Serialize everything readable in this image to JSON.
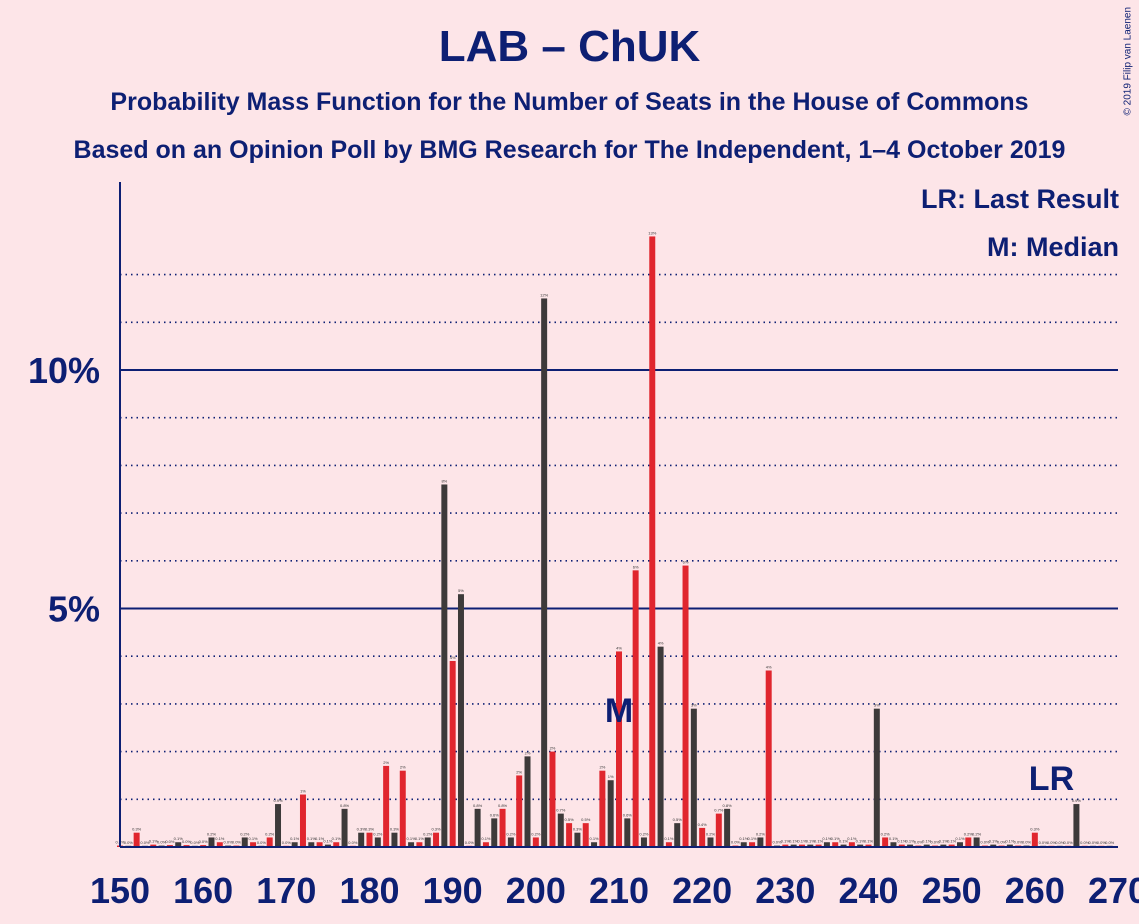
{
  "title": "LAB – ChUK",
  "subtitle1": "Probability Mass Function for the Number of Seats in the House of Commons",
  "subtitle2": "Based on an Opinion Poll by BMG Research for The Independent, 1–4 October 2019",
  "copyright": "© 2019 Filip van Laenen",
  "legend": {
    "lr": "LR: Last Result",
    "m": "M: Median"
  },
  "markers": {
    "median_label": "M",
    "median_seat": 210,
    "last_result_label": "LR",
    "last_result_seat": 262
  },
  "colors": {
    "lab": "#e0262e",
    "chuk": "#3d3a3a",
    "axis": "#0d1f73",
    "background": "#fde5e8"
  },
  "chart_data": {
    "type": "bar",
    "xlabel": "",
    "ylabel": "",
    "xlim": [
      150,
      270
    ],
    "ylim": [
      0,
      14
    ],
    "x_ticks": [
      150,
      160,
      170,
      180,
      190,
      200,
      210,
      220,
      230,
      240,
      250,
      260,
      270
    ],
    "y_major_ticks": [
      {
        "value": 5,
        "label": "5%"
      },
      {
        "value": 10,
        "label": "10%"
      }
    ],
    "y_minor_ticks": [
      1,
      2,
      3,
      4,
      6,
      7,
      8,
      9,
      11,
      12
    ],
    "series": [
      {
        "name": "LAB",
        "color": "#e0262e",
        "points": [
          [
            150,
            0.03
          ],
          [
            152,
            0.3
          ],
          [
            154,
            0.05
          ],
          [
            156,
            0.04
          ],
          [
            158,
            0.04
          ],
          [
            160,
            0.04
          ],
          [
            162,
            0.1
          ],
          [
            164,
            0.03
          ],
          [
            166,
            0.1
          ],
          [
            168,
            0.2
          ],
          [
            170,
            0.02
          ],
          [
            172,
            1.1
          ],
          [
            174,
            0.1
          ],
          [
            176,
            0.1
          ],
          [
            178,
            0.02
          ],
          [
            180,
            0.3
          ],
          [
            182,
            1.7
          ],
          [
            184,
            1.6
          ],
          [
            186,
            0.1
          ],
          [
            188,
            0.3
          ],
          [
            190,
            3.9
          ],
          [
            192,
            0.02
          ],
          [
            194,
            0.1
          ],
          [
            196,
            0.8
          ],
          [
            198,
            1.5
          ],
          [
            200,
            0.2
          ],
          [
            202,
            2.0
          ],
          [
            204,
            0.5
          ],
          [
            206,
            0.5
          ],
          [
            208,
            1.6
          ],
          [
            210,
            4.1
          ],
          [
            212,
            5.8
          ],
          [
            214,
            12.8
          ],
          [
            216,
            0.1
          ],
          [
            218,
            5.9
          ],
          [
            220,
            0.4
          ],
          [
            222,
            0.7
          ],
          [
            224,
            0.03
          ],
          [
            226,
            0.1
          ],
          [
            228,
            3.7
          ],
          [
            230,
            0.05
          ],
          [
            232,
            0.05
          ],
          [
            234,
            0.05
          ],
          [
            236,
            0.1
          ],
          [
            238,
            0.1
          ],
          [
            240,
            0.05
          ],
          [
            242,
            0.2
          ],
          [
            244,
            0.05
          ],
          [
            246,
            0.03
          ],
          [
            248,
            0.03
          ],
          [
            250,
            0.05
          ],
          [
            252,
            0.2
          ],
          [
            254,
            0.03
          ],
          [
            256,
            0.03
          ],
          [
            258,
            0.03
          ],
          [
            260,
            0.3
          ],
          [
            262,
            0.02
          ],
          [
            264,
            0.02
          ],
          [
            266,
            0.02
          ],
          [
            268,
            0.02
          ]
        ]
      },
      {
        "name": "ChUK",
        "color": "#3d3a3a",
        "points": [
          [
            151,
            0.02
          ],
          [
            153,
            0.02
          ],
          [
            155,
            0.03
          ],
          [
            157,
            0.1
          ],
          [
            159,
            0.02
          ],
          [
            161,
            0.2
          ],
          [
            163,
            0.03
          ],
          [
            165,
            0.2
          ],
          [
            167,
            0.02
          ],
          [
            169,
            0.9
          ],
          [
            171,
            0.1
          ],
          [
            173,
            0.1
          ],
          [
            175,
            0.05
          ],
          [
            177,
            0.8
          ],
          [
            179,
            0.3
          ],
          [
            181,
            0.2
          ],
          [
            183,
            0.3
          ],
          [
            185,
            0.1
          ],
          [
            187,
            0.2
          ],
          [
            189,
            7.6
          ],
          [
            191,
            5.3
          ],
          [
            193,
            0.8
          ],
          [
            195,
            0.6
          ],
          [
            197,
            0.2
          ],
          [
            199,
            1.9
          ],
          [
            201,
            11.5
          ],
          [
            203,
            0.7
          ],
          [
            205,
            0.3
          ],
          [
            207,
            0.1
          ],
          [
            209,
            1.4
          ],
          [
            211,
            0.6
          ],
          [
            213,
            0.2
          ],
          [
            215,
            4.2
          ],
          [
            217,
            0.5
          ],
          [
            219,
            2.9
          ],
          [
            221,
            0.2
          ],
          [
            223,
            0.8
          ],
          [
            225,
            0.1
          ],
          [
            227,
            0.2
          ],
          [
            229,
            0.03
          ],
          [
            231,
            0.05
          ],
          [
            233,
            0.05
          ],
          [
            235,
            0.1
          ],
          [
            237,
            0.05
          ],
          [
            239,
            0.05
          ],
          [
            241,
            2.9
          ],
          [
            243,
            0.1
          ],
          [
            245,
            0.05
          ],
          [
            247,
            0.05
          ],
          [
            249,
            0.05
          ],
          [
            251,
            0.1
          ],
          [
            253,
            0.2
          ],
          [
            255,
            0.05
          ],
          [
            257,
            0.05
          ],
          [
            259,
            0.03
          ],
          [
            261,
            0.02
          ],
          [
            263,
            0.02
          ],
          [
            265,
            0.9
          ],
          [
            267,
            0.02
          ],
          [
            269,
            0.02
          ]
        ]
      }
    ]
  }
}
